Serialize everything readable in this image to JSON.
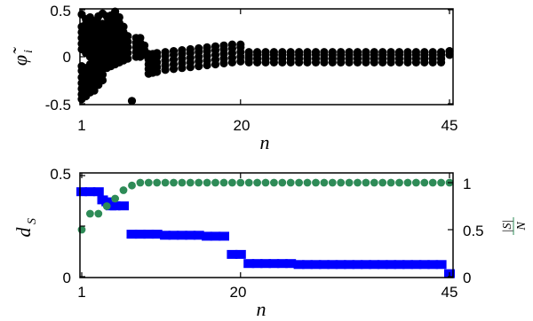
{
  "chart_data": [
    {
      "type": "scatter",
      "xlabel": "n",
      "ylabel": "φ̃_i",
      "ylabel_main": "φ̃",
      "ylabel_sub": "i",
      "xlim": [
        1,
        45
      ],
      "ylim": [
        -0.5,
        0.5
      ],
      "xticks": [
        "1",
        "20",
        "45"
      ],
      "yticks": [
        "-0.5",
        "0",
        "0.5"
      ],
      "marker_color": "#000000",
      "columns": [
        {
          "n": 1,
          "values": [
            -0.45,
            -0.4,
            -0.34,
            -0.28,
            -0.22,
            -0.15,
            -0.1,
            0.08,
            0.14,
            0.2,
            0.26,
            0.32,
            0.45
          ]
        },
        {
          "n": 1.5,
          "values": [
            -0.42,
            -0.36,
            -0.3,
            -0.24,
            -0.18,
            -0.12,
            0.04,
            0.1,
            0.16,
            0.22,
            0.28,
            0.35,
            0.4
          ]
        },
        {
          "n": 2,
          "values": [
            -0.38,
            -0.32,
            -0.26,
            -0.2,
            -0.14,
            -0.08,
            0.0,
            0.06,
            0.12,
            0.18,
            0.24,
            0.3,
            0.36,
            0.42
          ]
        },
        {
          "n": 2.5,
          "values": [
            -0.36,
            -0.3,
            -0.24,
            -0.18,
            -0.12,
            -0.06,
            0.02,
            0.08,
            0.14,
            0.2,
            0.26,
            0.32,
            0.38
          ]
        },
        {
          "n": 3,
          "values": [
            -0.3,
            -0.24,
            -0.18,
            -0.12,
            -0.06,
            0.0,
            0.06,
            0.12,
            0.18,
            0.24,
            0.3,
            0.36,
            0.43
          ]
        },
        {
          "n": 3.5,
          "values": [
            -0.25,
            -0.19,
            -0.13,
            -0.07,
            -0.01,
            0.05,
            0.11,
            0.17,
            0.23,
            0.29,
            0.35,
            0.46
          ]
        },
        {
          "n": 4,
          "values": [
            -0.12,
            -0.06,
            0.0,
            0.06,
            0.12,
            0.18,
            0.24,
            0.3,
            0.36,
            0.43
          ]
        },
        {
          "n": 4.5,
          "values": [
            -0.1,
            -0.04,
            0.02,
            0.08,
            0.14,
            0.2,
            0.26,
            0.32,
            0.38,
            0.44
          ]
        },
        {
          "n": 5,
          "values": [
            -0.08,
            -0.02,
            0.04,
            0.1,
            0.16,
            0.22,
            0.28,
            0.34,
            0.4,
            0.48
          ]
        },
        {
          "n": 5.5,
          "values": [
            -0.06,
            0.0,
            0.06,
            0.12,
            0.18,
            0.24,
            0.3,
            0.36,
            0.42
          ]
        },
        {
          "n": 6,
          "values": [
            -0.04,
            0.02,
            0.08,
            0.14,
            0.2,
            0.26,
            0.32
          ]
        },
        {
          "n": 6.5,
          "values": [
            -0.02,
            0.04,
            0.1,
            0.16,
            0.22
          ]
        },
        {
          "n": 7,
          "values": [
            -0.47
          ]
        },
        {
          "n": 7.5,
          "values": [
            0.0,
            0.05,
            0.1,
            0.15,
            0.2
          ]
        },
        {
          "n": 8,
          "values": [
            0.0,
            0.05,
            0.1,
            0.15,
            0.2
          ]
        },
        {
          "n": 8.5,
          "values": [
            0.02,
            0.07,
            0.12
          ]
        },
        {
          "n": 9,
          "values": [
            -0.18,
            -0.13,
            -0.08,
            -0.03,
            0.03
          ]
        },
        {
          "n": 9.5,
          "values": [
            -0.17,
            -0.12,
            -0.07,
            -0.02,
            0.03
          ]
        },
        {
          "n": 10,
          "values": [
            -0.16,
            -0.11,
            -0.06,
            0.0,
            0.04
          ]
        },
        {
          "n": 11,
          "values": [
            -0.14,
            -0.09,
            -0.04,
            0.01,
            0.05
          ]
        },
        {
          "n": 12,
          "values": [
            -0.13,
            -0.08,
            -0.03,
            0.02,
            0.06
          ]
        },
        {
          "n": 13,
          "values": [
            -0.12,
            -0.07,
            -0.02,
            0.03,
            0.07
          ]
        },
        {
          "n": 14,
          "values": [
            -0.11,
            -0.06,
            -0.01,
            0.04,
            0.08
          ]
        },
        {
          "n": 15,
          "values": [
            -0.1,
            -0.05,
            0.0,
            0.05,
            0.09
          ]
        },
        {
          "n": 16,
          "values": [
            -0.09,
            -0.04,
            0.01,
            0.06,
            0.1
          ]
        },
        {
          "n": 17,
          "values": [
            -0.08,
            -0.03,
            0.02,
            0.07,
            0.11
          ]
        },
        {
          "n": 18,
          "values": [
            -0.07,
            -0.02,
            0.03,
            0.08,
            0.12
          ]
        },
        {
          "n": 19,
          "values": [
            -0.06,
            -0.01,
            0.04,
            0.09,
            0.13
          ]
        },
        {
          "n": 20,
          "values": [
            -0.05,
            0.0,
            0.05,
            0.1,
            0.13
          ]
        },
        {
          "n": 21,
          "values": [
            -0.06,
            -0.02,
            0.02,
            0.05
          ]
        },
        {
          "n": 22,
          "values": [
            -0.06,
            -0.02,
            0.02,
            0.05
          ]
        },
        {
          "n": 23,
          "values": [
            -0.06,
            -0.02,
            0.02,
            0.05
          ]
        },
        {
          "n": 24,
          "values": [
            -0.06,
            -0.02,
            0.02,
            0.05
          ]
        },
        {
          "n": 25,
          "values": [
            -0.06,
            -0.02,
            0.02,
            0.05
          ]
        },
        {
          "n": 26,
          "values": [
            -0.06,
            -0.02,
            0.02,
            0.05
          ]
        },
        {
          "n": 27,
          "values": [
            -0.06,
            -0.02,
            0.02,
            0.05
          ]
        },
        {
          "n": 28,
          "values": [
            -0.06,
            -0.02,
            0.02,
            0.05
          ]
        },
        {
          "n": 29,
          "values": [
            -0.06,
            -0.02,
            0.02,
            0.05
          ]
        },
        {
          "n": 30,
          "values": [
            -0.06,
            -0.02,
            0.02,
            0.05
          ]
        },
        {
          "n": 31,
          "values": [
            -0.06,
            -0.02,
            0.02,
            0.05
          ]
        },
        {
          "n": 32,
          "values": [
            -0.06,
            -0.02,
            0.02,
            0.05
          ]
        },
        {
          "n": 33,
          "values": [
            -0.06,
            -0.02,
            0.02,
            0.05
          ]
        },
        {
          "n": 34,
          "values": [
            -0.06,
            -0.02,
            0.02,
            0.05
          ]
        },
        {
          "n": 35,
          "values": [
            -0.06,
            -0.02,
            0.02,
            0.05
          ]
        },
        {
          "n": 36,
          "values": [
            -0.06,
            -0.02,
            0.02,
            0.05
          ]
        },
        {
          "n": 37,
          "values": [
            -0.06,
            -0.02,
            0.02,
            0.05
          ]
        },
        {
          "n": 38,
          "values": [
            -0.06,
            -0.02,
            0.02,
            0.05
          ]
        },
        {
          "n": 39,
          "values": [
            -0.06,
            -0.02,
            0.02,
            0.05
          ]
        },
        {
          "n": 40,
          "values": [
            -0.06,
            -0.02,
            0.02,
            0.05
          ]
        },
        {
          "n": 41,
          "values": [
            -0.06,
            -0.02,
            0.02,
            0.05
          ]
        },
        {
          "n": 42,
          "values": [
            -0.06,
            -0.02,
            0.02,
            0.05
          ]
        },
        {
          "n": 43,
          "values": [
            -0.06,
            -0.02,
            0.02,
            0.05
          ]
        },
        {
          "n": 44,
          "values": [
            -0.06,
            -0.02,
            0.02,
            0.05
          ]
        },
        {
          "n": 45,
          "values": [
            0.02,
            0.06
          ]
        }
      ]
    },
    {
      "type": "step_and_scatter",
      "xlabel": "n",
      "xlim": [
        1,
        45
      ],
      "xticks": [
        "1",
        "20",
        "45"
      ],
      "left_axis": {
        "label_main": "d",
        "label_sub": "S",
        "color": "#0000ff",
        "ylim": [
          0,
          0.5
        ],
        "ticks": [
          "0",
          "0.5"
        ]
      },
      "right_axis": {
        "label_num": "|S|",
        "label_den": "N",
        "color": "#2e8b57",
        "ylim": [
          0,
          1.1
        ],
        "ticks": [
          "0",
          "0.5",
          "1"
        ]
      },
      "series": [
        {
          "axis": "left",
          "color": "#0000ff",
          "marker": "square",
          "points": [
            {
              "x": 1,
              "y": 0.42
            },
            {
              "x": 2,
              "y": 0.42
            },
            {
              "x": 3,
              "y": 0.42
            },
            {
              "x": 3.5,
              "y": 0.38
            },
            {
              "x": 4,
              "y": 0.37
            },
            {
              "x": 4.5,
              "y": 0.35
            },
            {
              "x": 5,
              "y": 0.35
            },
            {
              "x": 6,
              "y": 0.35
            },
            {
              "x": 7,
              "y": 0.21
            },
            {
              "x": 8,
              "y": 0.21
            },
            {
              "x": 9,
              "y": 0.21
            },
            {
              "x": 10,
              "y": 0.21
            },
            {
              "x": 11,
              "y": 0.205
            },
            {
              "x": 12,
              "y": 0.205
            },
            {
              "x": 13,
              "y": 0.205
            },
            {
              "x": 14,
              "y": 0.205
            },
            {
              "x": 15,
              "y": 0.205
            },
            {
              "x": 16,
              "y": 0.2
            },
            {
              "x": 17,
              "y": 0.2
            },
            {
              "x": 18,
              "y": 0.2
            },
            {
              "x": 19,
              "y": 0.11
            },
            {
              "x": 20,
              "y": 0.11
            },
            {
              "x": 21,
              "y": 0.065
            },
            {
              "x": 22,
              "y": 0.065
            },
            {
              "x": 23,
              "y": 0.065
            },
            {
              "x": 24,
              "y": 0.065
            },
            {
              "x": 25,
              "y": 0.065
            },
            {
              "x": 26,
              "y": 0.065
            },
            {
              "x": 27,
              "y": 0.06
            },
            {
              "x": 28,
              "y": 0.06
            },
            {
              "x": 29,
              "y": 0.06
            },
            {
              "x": 30,
              "y": 0.06
            },
            {
              "x": 31,
              "y": 0.06
            },
            {
              "x": 32,
              "y": 0.06
            },
            {
              "x": 33,
              "y": 0.06
            },
            {
              "x": 34,
              "y": 0.06
            },
            {
              "x": 35,
              "y": 0.06
            },
            {
              "x": 36,
              "y": 0.06
            },
            {
              "x": 37,
              "y": 0.06
            },
            {
              "x": 38,
              "y": 0.06
            },
            {
              "x": 39,
              "y": 0.06
            },
            {
              "x": 40,
              "y": 0.06
            },
            {
              "x": 41,
              "y": 0.06
            },
            {
              "x": 42,
              "y": 0.06
            },
            {
              "x": 43,
              "y": 0.06
            },
            {
              "x": 44,
              "y": 0.06
            },
            {
              "x": 45,
              "y": 0.015
            }
          ]
        },
        {
          "axis": "right",
          "color": "#2e8b57",
          "marker": "circle",
          "points": [
            {
              "x": 1,
              "y": 0.5
            },
            {
              "x": 2,
              "y": 0.67
            },
            {
              "x": 3,
              "y": 0.67
            },
            {
              "x": 4,
              "y": 0.75
            },
            {
              "x": 5,
              "y": 0.83
            },
            {
              "x": 6,
              "y": 0.92
            },
            {
              "x": 7,
              "y": 0.97
            },
            {
              "x": 8,
              "y": 1
            },
            {
              "x": 9,
              "y": 1
            },
            {
              "x": 10,
              "y": 1
            },
            {
              "x": 11,
              "y": 1
            },
            {
              "x": 12,
              "y": 1
            },
            {
              "x": 13,
              "y": 1
            },
            {
              "x": 14,
              "y": 1
            },
            {
              "x": 15,
              "y": 1
            },
            {
              "x": 16,
              "y": 1
            },
            {
              "x": 17,
              "y": 1
            },
            {
              "x": 18,
              "y": 1
            },
            {
              "x": 19,
              "y": 1
            },
            {
              "x": 20,
              "y": 1
            },
            {
              "x": 21,
              "y": 1
            },
            {
              "x": 22,
              "y": 1
            },
            {
              "x": 23,
              "y": 1
            },
            {
              "x": 24,
              "y": 1
            },
            {
              "x": 25,
              "y": 1
            },
            {
              "x": 26,
              "y": 1
            },
            {
              "x": 27,
              "y": 1
            },
            {
              "x": 28,
              "y": 1
            },
            {
              "x": 29,
              "y": 1
            },
            {
              "x": 30,
              "y": 1
            },
            {
              "x": 31,
              "y": 1
            },
            {
              "x": 32,
              "y": 1
            },
            {
              "x": 33,
              "y": 1
            },
            {
              "x": 34,
              "y": 1
            },
            {
              "x": 35,
              "y": 1
            },
            {
              "x": 36,
              "y": 1
            },
            {
              "x": 37,
              "y": 1
            },
            {
              "x": 38,
              "y": 1
            },
            {
              "x": 39,
              "y": 1
            },
            {
              "x": 40,
              "y": 1
            },
            {
              "x": 41,
              "y": 1
            },
            {
              "x": 42,
              "y": 1
            },
            {
              "x": 43,
              "y": 1
            },
            {
              "x": 44,
              "y": 1
            },
            {
              "x": 45,
              "y": 1
            }
          ]
        }
      ]
    }
  ]
}
